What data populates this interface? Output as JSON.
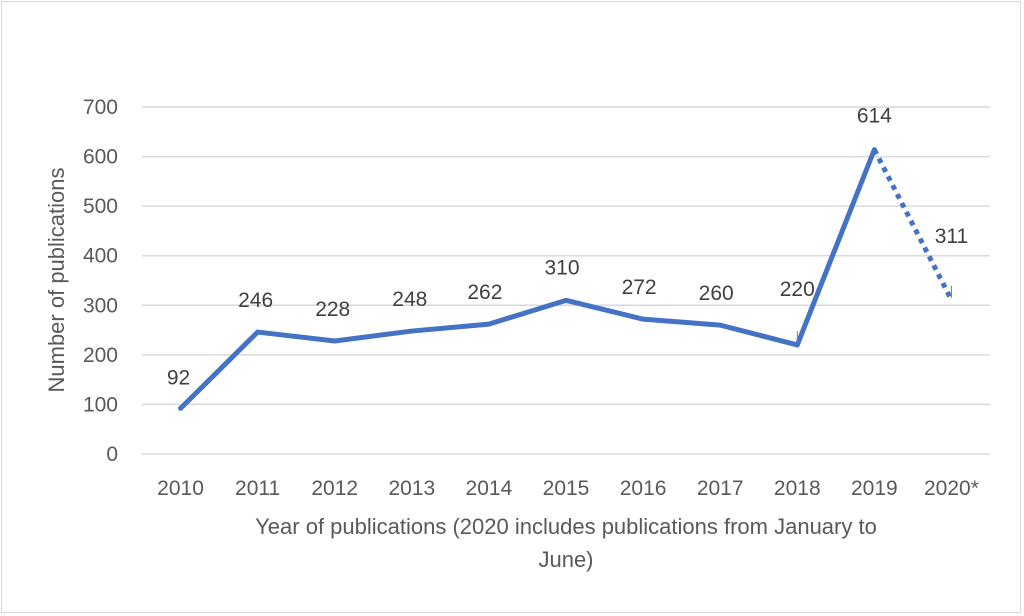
{
  "chart_data": {
    "type": "line",
    "title": "",
    "categories": [
      "2010",
      "2011",
      "2012",
      "2013",
      "2014",
      "2015",
      "2016",
      "2017",
      "2018",
      "2019",
      "2020*"
    ],
    "series": [
      {
        "values": [
          92,
          246,
          228,
          248,
          262,
          310,
          272,
          260,
          220,
          614,
          311
        ],
        "color": "#4472c4",
        "last_segment_style": "dotted"
      }
    ],
    "data_labels": [
      "92",
      "246",
      "228",
      "248",
      "262",
      "310",
      "272",
      "260",
      "220",
      "614",
      "311"
    ],
    "ylim": [
      0,
      700
    ],
    "yticks": [
      "0",
      "100",
      "200",
      "300",
      "400",
      "500",
      "600",
      "700"
    ],
    "ylabel": "Number of publications",
    "xlabel_lines": [
      "Year of publications (2020 includes publications from January to",
      "June)"
    ],
    "grid": true,
    "legend": "none"
  }
}
